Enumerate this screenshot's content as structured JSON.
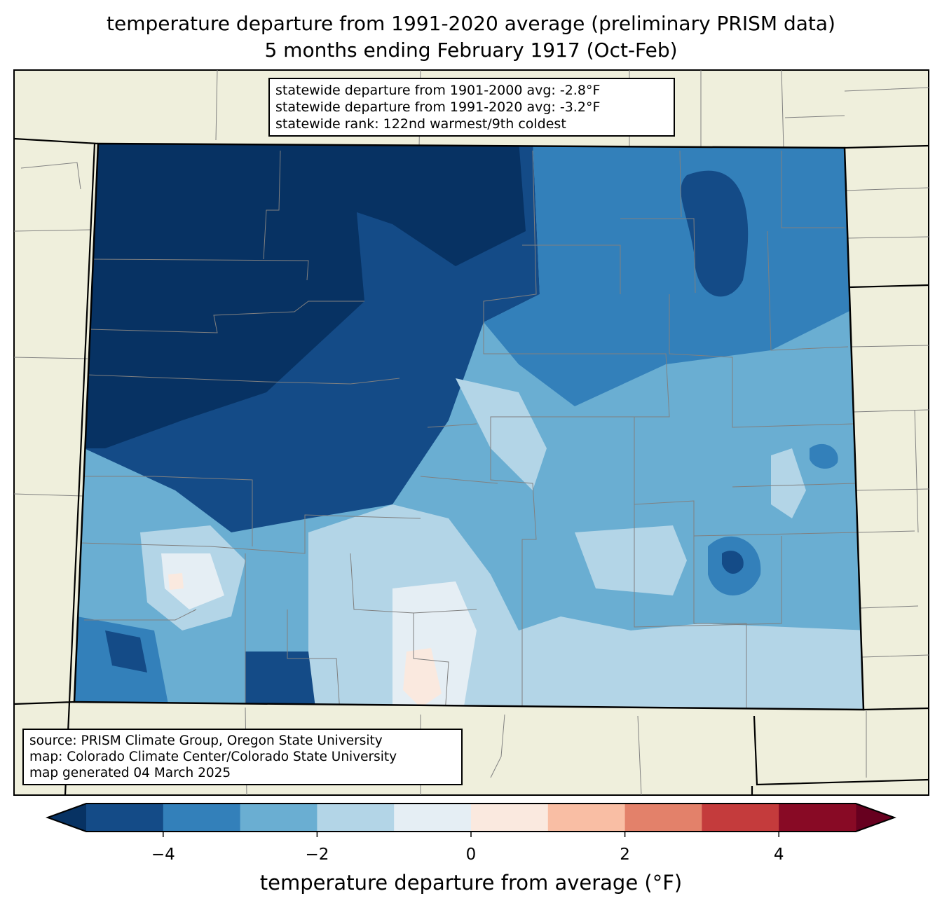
{
  "title": {
    "line1": "temperature departure from 1991-2020 average (preliminary PRISM data)",
    "line2": "5 months ending February 1917 (Oct-Feb)"
  },
  "stats_box": {
    "line1": "statewide departure from 1901-2000 avg: -2.8°F",
    "line2": "statewide departure from 1991-2020 avg: -3.2°F",
    "line3": "statewide rank: 122nd warmest/9th coldest"
  },
  "source_box": {
    "line1": "source: PRISM Climate Group, Oregon State University",
    "line2": "map: Colorado Climate Center/Colorado State University",
    "line3": "map generated 04 March 2025"
  },
  "colorbar": {
    "label": "temperature departure from average (°F)",
    "bounds": [
      -5,
      -4,
      -3,
      -2,
      -1,
      0,
      1,
      2,
      3,
      4,
      5
    ],
    "colors": [
      "#144b87",
      "#3380ba",
      "#6aaed2",
      "#b3d5e7",
      "#e5eef4",
      "#fae9df",
      "#f9bea4",
      "#e3816a",
      "#c43b3c",
      "#880a25"
    ],
    "under_color": "#073263",
    "over_color": "#67001f",
    "ticks": [
      {
        "value": -4,
        "label": "−4"
      },
      {
        "value": -2,
        "label": "−2"
      },
      {
        "value": 0,
        "label": "0"
      },
      {
        "value": 2,
        "label": "2"
      },
      {
        "value": 4,
        "label": "4"
      }
    ]
  },
  "map_colors": {
    "land": "#efefdc",
    "county": "#808080",
    "state": "#000000"
  }
}
